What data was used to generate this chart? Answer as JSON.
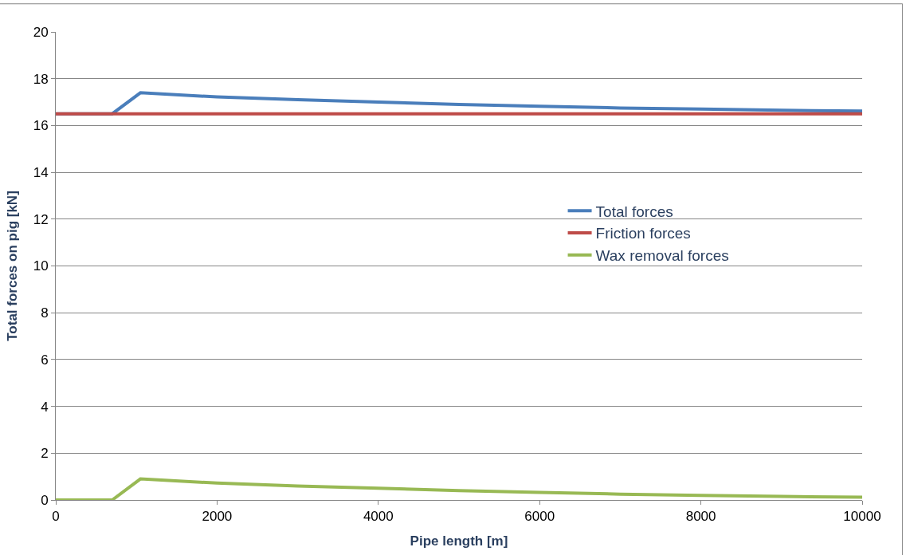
{
  "chart_data": {
    "type": "line",
    "xlabel": "Pipe length [m]",
    "ylabel": "Total forces on pig [kN]",
    "xlim": [
      0,
      10000
    ],
    "xticks": [
      0,
      2000,
      4000,
      6000,
      8000,
      10000
    ],
    "ylim": [
      0,
      20
    ],
    "yticks": [
      0,
      2,
      4,
      6,
      8,
      10,
      12,
      14,
      16,
      18,
      20
    ],
    "grid": "y",
    "legend": "right",
    "marker": "none",
    "line_style": "solid",
    "series": [
      {
        "name": "Total forces",
        "color": "#4a7ebb",
        "x": [
          0,
          700,
          1050,
          2000,
          3000,
          4000,
          5000,
          6000,
          7000,
          8000,
          9000,
          10000
        ],
        "values": [
          16.5,
          16.5,
          17.4,
          17.22,
          17.1,
          17.0,
          16.9,
          16.82,
          16.75,
          16.7,
          16.65,
          16.62
        ]
      },
      {
        "name": "Friction forces",
        "color": "#be4b48",
        "x": [
          0,
          10000
        ],
        "values": [
          16.5,
          16.5
        ]
      },
      {
        "name": "Wax removal forces",
        "color": "#98b954",
        "x": [
          0,
          700,
          1050,
          2000,
          3000,
          4000,
          5000,
          6000,
          7000,
          8000,
          9000,
          10000
        ],
        "values": [
          0,
          0,
          0.9,
          0.72,
          0.6,
          0.5,
          0.4,
          0.32,
          0.25,
          0.2,
          0.15,
          0.12
        ]
      }
    ]
  }
}
